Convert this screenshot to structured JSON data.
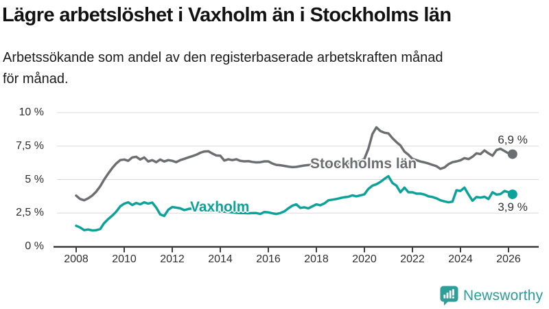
{
  "header": {
    "title": "Lägre arbetslöshet i Vaxholm än i Stockholms län",
    "subtitle_lines": [
      "Arbetssökande som andel av den registerbaserade arbetskraften månad",
      "för månad."
    ]
  },
  "chart_data": {
    "type": "line",
    "xlabel": "",
    "ylabel": "",
    "ylim": [
      0,
      10
    ],
    "grid": "horizontal",
    "x_start": 2008.0,
    "x_step_years": 0.166667,
    "y_ticks": [
      {
        "value": 0,
        "label": "0 %"
      },
      {
        "value": 2.5,
        "label": "2,5 %"
      },
      {
        "value": 5,
        "label": "5 %"
      },
      {
        "value": 7.5,
        "label": "7,5 %"
      },
      {
        "value": 10,
        "label": "10 %"
      }
    ],
    "x_ticks": [
      {
        "year": 2008,
        "label": "2008"
      },
      {
        "year": 2010,
        "label": "2010"
      },
      {
        "year": 2012,
        "label": "2012"
      },
      {
        "year": 2014,
        "label": "2014"
      },
      {
        "year": 2016,
        "label": "2016"
      },
      {
        "year": 2018,
        "label": "2018"
      },
      {
        "year": 2020,
        "label": "2020"
      },
      {
        "year": 2022,
        "label": "2022"
      },
      {
        "year": 2024,
        "label": "2024"
      },
      {
        "year": 2026,
        "label": "2026"
      }
    ],
    "series": [
      {
        "name": "Stockholms län",
        "color": "#6d6e71",
        "end_label": "6,9 %",
        "end_label_side": "above",
        "values": [
          3.8,
          3.55,
          3.45,
          3.6,
          3.8,
          4.1,
          4.5,
          5.0,
          5.45,
          5.85,
          6.2,
          6.45,
          6.5,
          6.4,
          6.65,
          6.7,
          6.5,
          6.65,
          6.35,
          6.45,
          6.3,
          6.5,
          6.35,
          6.45,
          6.4,
          6.3,
          6.45,
          6.55,
          6.65,
          6.75,
          6.85,
          7.0,
          7.1,
          7.12,
          6.95,
          6.8,
          6.78,
          6.42,
          6.52,
          6.45,
          6.52,
          6.4,
          6.36,
          6.38,
          6.32,
          6.28,
          6.3,
          6.36,
          6.36,
          6.2,
          6.1,
          6.07,
          6.02,
          5.97,
          5.93,
          5.95,
          6.0,
          6.05,
          6.08,
          6.1,
          6.1,
          6.05,
          6.12,
          6.1,
          6.06,
          6.1,
          6.15,
          6.2,
          6.2,
          6.25,
          6.3,
          6.4,
          6.55,
          7.3,
          8.4,
          8.9,
          8.62,
          8.5,
          8.45,
          8.1,
          7.8,
          7.55,
          7.1,
          6.85,
          6.55,
          6.45,
          6.35,
          6.28,
          6.2,
          6.1,
          6.0,
          5.8,
          5.9,
          6.15,
          6.3,
          6.36,
          6.44,
          6.6,
          6.53,
          6.7,
          6.96,
          6.9,
          7.18,
          6.96,
          6.78,
          7.2,
          7.3,
          7.13,
          6.96,
          6.9
        ]
      },
      {
        "name": "Vaxholm",
        "color": "#0ca29a",
        "end_label": "3,9 %",
        "end_label_side": "below",
        "values": [
          1.55,
          1.42,
          1.22,
          1.27,
          1.2,
          1.22,
          1.3,
          1.75,
          2.05,
          2.3,
          2.6,
          3.0,
          3.2,
          3.3,
          3.1,
          3.25,
          3.15,
          3.3,
          3.2,
          3.28,
          2.9,
          2.4,
          2.28,
          2.75,
          2.95,
          2.9,
          2.85,
          2.72,
          2.8,
          2.85,
          2.8,
          2.76,
          2.72,
          2.7,
          2.68,
          2.65,
          2.62,
          2.6,
          2.58,
          2.55,
          2.52,
          2.5,
          2.5,
          2.48,
          2.5,
          2.5,
          2.43,
          2.58,
          2.55,
          2.48,
          2.43,
          2.5,
          2.62,
          2.85,
          3.05,
          3.15,
          2.88,
          2.93,
          2.85,
          3.0,
          3.15,
          3.08,
          3.22,
          3.45,
          3.5,
          3.55,
          3.62,
          3.68,
          3.72,
          3.82,
          3.75,
          3.82,
          3.9,
          4.3,
          4.55,
          4.65,
          4.82,
          5.05,
          5.25,
          4.75,
          4.55,
          4.05,
          4.4,
          4.05,
          4.05,
          3.95,
          3.95,
          3.88,
          3.75,
          3.7,
          3.6,
          3.45,
          3.37,
          3.3,
          3.35,
          4.2,
          4.15,
          4.4,
          3.88,
          3.42,
          3.7,
          3.65,
          3.72,
          3.55,
          4.05,
          3.88,
          3.92,
          4.15,
          4.05,
          3.9
        ]
      }
    ]
  },
  "branding": {
    "logo_text": "Newsworthy",
    "logo_color": "#2b9c96",
    "icon": "bar-chart-speech-bubble-icon"
  }
}
